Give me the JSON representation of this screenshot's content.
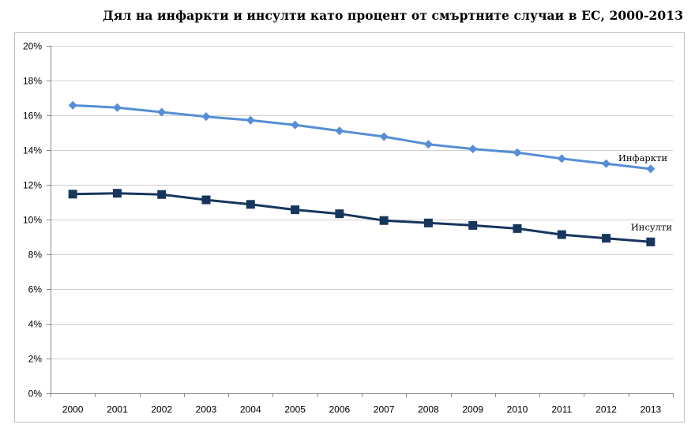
{
  "chart_data": {
    "type": "line",
    "title": "Дял на инфаркти и инсулти като процент от смъртните случаи в ЕС, 2000-2013",
    "xlabel": "",
    "ylabel": "",
    "categories": [
      "2000",
      "2001",
      "2002",
      "2003",
      "2004",
      "2005",
      "2006",
      "2007",
      "2008",
      "2009",
      "2010",
      "2011",
      "2012",
      "2013"
    ],
    "ylim": [
      0,
      20
    ],
    "yticks": [
      0,
      2,
      4,
      6,
      8,
      10,
      12,
      14,
      16,
      18,
      20
    ],
    "ytick_labels": [
      "0%",
      "2%",
      "4%",
      "6%",
      "8%",
      "10%",
      "12%",
      "14%",
      "16%",
      "18%",
      "20%"
    ],
    "grid": true,
    "legend": "inline labels at line ends (right)",
    "series": [
      {
        "name": "Инфаркти",
        "marker": "diamond",
        "color": "#558ED5",
        "values": [
          16.56,
          16.43,
          16.17,
          15.91,
          15.7,
          15.43,
          15.09,
          14.76,
          14.32,
          14.05,
          13.84,
          13.49,
          13.2,
          12.9
        ]
      },
      {
        "name": "Инсулти",
        "marker": "square",
        "color": "#17365D",
        "values": [
          11.45,
          11.5,
          11.43,
          11.12,
          10.86,
          10.55,
          10.32,
          9.93,
          9.79,
          9.65,
          9.47,
          9.12,
          8.91,
          8.7
        ]
      }
    ]
  }
}
